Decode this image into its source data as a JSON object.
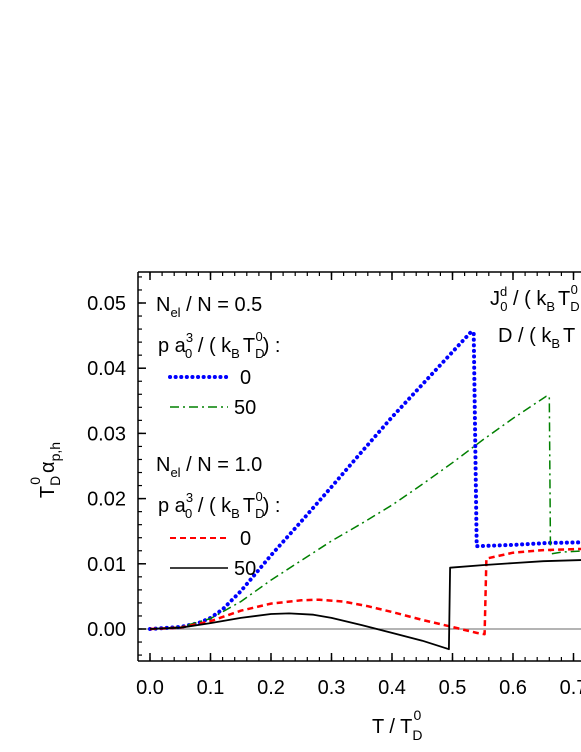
{
  "chart_data": {
    "type": "line",
    "xlabel": {
      "main": "T / T",
      "sub": "D",
      "sup": "0"
    },
    "ylabel": {
      "main": "T",
      "sub": "D",
      "sup": "0",
      "greek": "α",
      "greek_sub": "p,h"
    },
    "xlim": [
      -0.03,
      0.72
    ],
    "ylim": [
      -0.005,
      0.056
    ],
    "x_ticks": [
      "0.0",
      "0.1",
      "0.2",
      "0.3",
      "0.4",
      "0.5",
      "0.6",
      "0.7"
    ],
    "x_tick_values": [
      0.0,
      0.1,
      0.2,
      0.3,
      0.4,
      0.5,
      0.6,
      0.7
    ],
    "y_ticks": [
      "0.00",
      "0.01",
      "0.02",
      "0.03",
      "0.04",
      "0.05"
    ],
    "y_tick_values": [
      0.0,
      0.01,
      0.02,
      0.03,
      0.04,
      0.05
    ],
    "zero_line": true,
    "groups": [
      {
        "header": {
          "n": "N",
          "n_sub": "el",
          "rest": " / N = 0.5"
        },
        "param": {
          "a": "p a",
          "a_sup": "3",
          "a_sub": "0",
          "mid": " / ( k",
          "k_sub": "B",
          "t": "T",
          "t_sub": "D",
          "t_sup": "0",
          "end": ") :"
        },
        "entries": [
          {
            "label": "0",
            "series": 0
          },
          {
            "label": "50",
            "series": 1
          }
        ]
      },
      {
        "header": {
          "n": "N",
          "n_sub": "el",
          "rest": " / N = 1.0"
        },
        "param": {
          "a": "p a",
          "a_sup": "3",
          "a_sub": "0",
          "mid": " / ( k",
          "k_sub": "B",
          "t": "T",
          "t_sub": "D",
          "t_sup": "0",
          "end": ") :"
        },
        "entries": [
          {
            "label": "0",
            "series": 2
          },
          {
            "label": "50",
            "series": 3
          }
        ]
      }
    ],
    "corner_annotation": {
      "line1": {
        "j": "J",
        "j_sub": "0",
        "j_sup": "d",
        "mid": " / ( k",
        "k_sub": "B",
        "t": "T",
        "t_sub": "D",
        "t_sup": "0"
      },
      "line2": {
        "d": "D / ( k",
        "k_sub": "B",
        "t": "T"
      }
    },
    "series": [
      {
        "color": "#0000ff",
        "style": "dotted",
        "x": [
          0.0,
          0.05,
          0.08,
          0.1,
          0.12,
          0.15,
          0.2,
          0.25,
          0.3,
          0.35,
          0.4,
          0.45,
          0.5,
          0.53,
          0.535,
          0.54,
          0.6,
          0.66,
          0.72
        ],
        "y": [
          0.0,
          0.0003,
          0.0009,
          0.0017,
          0.003,
          0.0058,
          0.0113,
          0.0165,
          0.0218,
          0.0272,
          0.0325,
          0.0375,
          0.0425,
          0.0455,
          0.0455,
          0.0127,
          0.0129,
          0.0132,
          0.0133
        ]
      },
      {
        "color": "#008000",
        "style": "dashdot",
        "x": [
          0.0,
          0.05,
          0.1,
          0.15,
          0.2,
          0.25,
          0.3,
          0.35,
          0.4,
          0.45,
          0.5,
          0.55,
          0.6,
          0.655,
          0.66,
          0.662,
          0.68,
          0.72
        ],
        "y": [
          0.0,
          0.0003,
          0.0016,
          0.0042,
          0.0075,
          0.0105,
          0.0135,
          0.0162,
          0.019,
          0.0222,
          0.0255,
          0.029,
          0.0323,
          0.0357,
          0.0357,
          0.0115,
          0.0118,
          0.012
        ]
      },
      {
        "color": "#ff0000",
        "style": "dashed",
        "x": [
          0.0,
          0.05,
          0.1,
          0.15,
          0.2,
          0.25,
          0.28,
          0.32,
          0.36,
          0.4,
          0.45,
          0.5,
          0.54,
          0.553,
          0.556,
          0.6,
          0.65,
          0.72
        ],
        "y": [
          0.0,
          0.0002,
          0.0012,
          0.0028,
          0.0039,
          0.0044,
          0.0045,
          0.0042,
          0.0035,
          0.0026,
          0.0014,
          0.0003,
          -0.0006,
          -0.0008,
          0.0108,
          0.0117,
          0.0121,
          0.0123
        ]
      },
      {
        "color": "#000000",
        "style": "solid",
        "x": [
          0.0,
          0.05,
          0.1,
          0.15,
          0.2,
          0.23,
          0.27,
          0.3,
          0.35,
          0.4,
          0.45,
          0.494,
          0.496,
          0.55,
          0.6,
          0.65,
          0.72
        ],
        "y": [
          0.0,
          0.0002,
          0.0009,
          0.0017,
          0.0023,
          0.0024,
          0.0022,
          0.0017,
          0.0006,
          -0.0006,
          -0.0018,
          -0.0031,
          0.0094,
          0.0098,
          0.0101,
          0.0104,
          0.0106
        ]
      }
    ]
  }
}
